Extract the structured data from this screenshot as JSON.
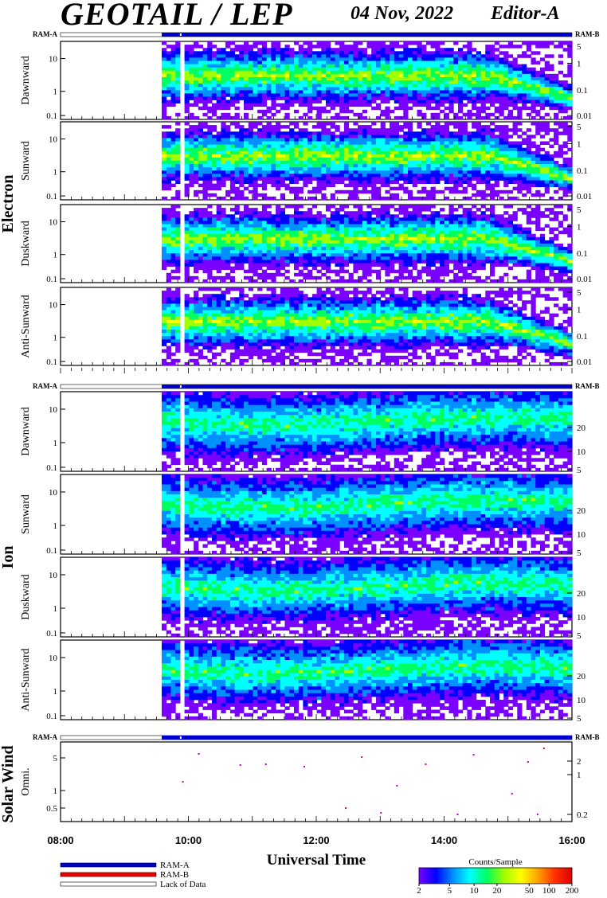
{
  "header": {
    "title": "GEOTAIL / LEP",
    "date": "04 Nov, 2022",
    "editor": "Editor-A"
  },
  "ram": {
    "left": "RAM-A",
    "right": "RAM-B"
  },
  "groups": {
    "electron": "Electron",
    "ion": "Ion",
    "solar_wind": "Solar Wind"
  },
  "colors": {
    "ram_a": "#0000cc",
    "ram_b": "#ee0000",
    "no_data": "#ffffff"
  },
  "chart_data": [
    {
      "type": "heatmap",
      "group": "Electron",
      "ylabel": "Dawnward",
      "x_range": [
        "08:00",
        "16:00"
      ],
      "data_start": "09:35",
      "gap_at": "09:53",
      "y_ticks_left": [
        "10",
        "1",
        "0.1"
      ],
      "y_ticks_right": [
        "5",
        "1",
        "0.1",
        "0.01"
      ],
      "y_scale": "log",
      "ylim": [
        0.08,
        40
      ],
      "data_fraction": {
        "low": 0.3,
        "high": 14
      }
    },
    {
      "type": "heatmap",
      "group": "Electron",
      "ylabel": "Sunward",
      "x_range": [
        "08:00",
        "16:00"
      ],
      "data_start": "09:35",
      "gap_at": "09:53",
      "y_ticks_left": [
        "10",
        "1",
        "0.1"
      ],
      "y_ticks_right": [
        "5",
        "1",
        "0.1",
        "0.01"
      ],
      "y_scale": "log",
      "ylim": [
        0.08,
        40
      ]
    },
    {
      "type": "heatmap",
      "group": "Electron",
      "ylabel": "Duskward",
      "x_range": [
        "08:00",
        "16:00"
      ],
      "data_start": "09:35",
      "gap_at": "09:53",
      "y_ticks_left": [
        "10",
        "1",
        "0.1"
      ],
      "y_ticks_right": [
        "5",
        "1",
        "0.1",
        "0.01"
      ],
      "y_scale": "log",
      "ylim": [
        0.08,
        40
      ]
    },
    {
      "type": "heatmap",
      "group": "Electron",
      "ylabel": "Anti-Sunward",
      "x_range": [
        "08:00",
        "16:00"
      ],
      "data_start": "09:35",
      "gap_at": "09:53",
      "y_ticks_left": [
        "10",
        "1",
        "0.1"
      ],
      "y_ticks_right": [
        "5",
        "1",
        "0.1",
        "0.01"
      ],
      "y_scale": "log",
      "ylim": [
        0.08,
        40
      ]
    },
    {
      "type": "heatmap",
      "group": "Ion",
      "ylabel": "Dawnward",
      "x_range": [
        "08:00",
        "16:00"
      ],
      "data_start": "09:35",
      "gap_at": "09:53",
      "y_ticks_left": [
        "10",
        "1",
        "0.1"
      ],
      "y_ticks_right": [
        "20",
        "10",
        "5"
      ],
      "y_scale": "log",
      "ylim": [
        0.08,
        40
      ]
    },
    {
      "type": "heatmap",
      "group": "Ion",
      "ylabel": "Sunward",
      "x_range": [
        "08:00",
        "16:00"
      ],
      "data_start": "09:35",
      "gap_at": "09:53",
      "y_ticks_left": [
        "10",
        "1",
        "0.1"
      ],
      "y_ticks_right": [
        "20",
        "10",
        "5"
      ],
      "y_scale": "log",
      "ylim": [
        0.08,
        40
      ]
    },
    {
      "type": "heatmap",
      "group": "Ion",
      "ylabel": "Duskward",
      "x_range": [
        "08:00",
        "16:00"
      ],
      "data_start": "09:35",
      "gap_at": "09:53",
      "y_ticks_left": [
        "10",
        "1",
        "0.1"
      ],
      "y_ticks_right": [
        "20",
        "10",
        "5"
      ],
      "y_scale": "log",
      "ylim": [
        0.08,
        40
      ]
    },
    {
      "type": "heatmap",
      "group": "Ion",
      "ylabel": "Anti-Sunward",
      "x_range": [
        "08:00",
        "16:00"
      ],
      "data_start": "09:35",
      "gap_at": "09:53",
      "y_ticks_left": [
        "10",
        "1",
        "0.1"
      ],
      "y_ticks_right": [
        "20",
        "10",
        "5"
      ],
      "y_scale": "log",
      "ylim": [
        0.08,
        40
      ]
    },
    {
      "type": "scatter",
      "group": "Solar Wind",
      "ylabel": "Omni.",
      "x_range": [
        "08:00",
        "16:00"
      ],
      "y_ticks_left": [
        "5",
        "1",
        "0.5"
      ],
      "y_ticks_right": [
        "2",
        "1",
        "0.2"
      ],
      "y_scale": "log"
    }
  ],
  "x_axis": {
    "ticks": [
      "08:00",
      "10:00",
      "12:00",
      "14:00",
      "16:00"
    ],
    "label": "Universal Time"
  },
  "legend": {
    "items": [
      {
        "label": "RAM-A",
        "color": "#0000cc"
      },
      {
        "label": "RAM-B",
        "color": "#ee0000"
      },
      {
        "label": "Lack of Data",
        "color": "#ffffff"
      }
    ]
  },
  "colorbar": {
    "title": "Counts/Sample",
    "ticks": [
      "2",
      "5",
      "10",
      "20",
      "50",
      "100",
      "200"
    ],
    "colors": [
      "#7a00ff",
      "#0000ff",
      "#0090ff",
      "#00ffff",
      "#00ff60",
      "#a0ff00",
      "#ffff00",
      "#ffa000",
      "#ff3000",
      "#e00000"
    ]
  }
}
